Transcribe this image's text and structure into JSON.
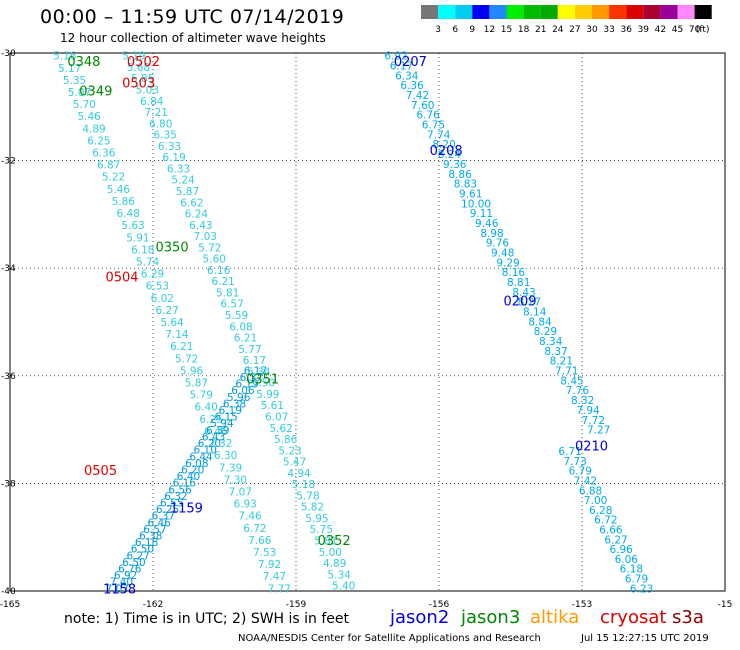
{
  "title": "00:00 – 11:59 UTC 07/14/2019",
  "subtitle": "12 hour collection of altimeter wave heights",
  "note": "note: 1) Time is in UTC; 2) SWH is in feet",
  "credit": "NOAA/NESDIS Center for Satellite Applications and Research",
  "timestamp": "Jul 15 12:27:15 UTC 2019",
  "satellites": [
    {
      "name": "jason2",
      "color": "#0000dd"
    },
    {
      "name": "jason3",
      "color": "#008800"
    },
    {
      "name": "altika",
      "color": "#ff9900"
    },
    {
      "name": "cryosat",
      "color": "#dd0000"
    },
    {
      "name": "s3a",
      "color": "#880000"
    }
  ],
  "color_scale": {
    "unit": "(ft)",
    "labels": [
      "3",
      "6",
      "9",
      "12",
      "15",
      "18",
      "21",
      "24",
      "27",
      "30",
      "33",
      "36",
      "39",
      "42",
      "45",
      "70"
    ],
    "colors": [
      "#777777",
      "#00ffff",
      "#00ccee",
      "#0000ee",
      "#2288ff",
      "#00ee00",
      "#00bb00",
      "#00aa00",
      "#ffff00",
      "#ffcc00",
      "#ff9900",
      "#ff3300",
      "#dd0000",
      "#aa0033",
      "#990099",
      "#ff88ff",
      "#000000"
    ]
  },
  "axes": {
    "x_ticks": [
      "-165",
      "-162",
      "-159",
      "-156",
      "-153",
      "-15"
    ],
    "y_ticks": [
      "-30",
      "-32",
      "-34",
      "-36",
      "-38",
      "-40"
    ]
  },
  "time_labels": [
    {
      "text": "0348",
      "color": "#008800",
      "lon": -163.45,
      "lat": -30.15
    },
    {
      "text": "0349",
      "color": "#008800",
      "lon": -163.2,
      "lat": -30.7
    },
    {
      "text": "0350",
      "color": "#008800",
      "lon": -161.6,
      "lat": -33.6
    },
    {
      "text": "0351",
      "color": "#008800",
      "lon": -159.7,
      "lat": -36.05
    },
    {
      "text": "0352",
      "color": "#008800",
      "lon": -158.2,
      "lat": -39.05
    },
    {
      "text": "0502",
      "color": "#dd0000",
      "lon": -162.2,
      "lat": -30.15
    },
    {
      "text": "0503",
      "color": "#dd0000",
      "lon": -162.3,
      "lat": -30.55
    },
    {
      "text": "0504",
      "color": "#dd0000",
      "lon": -162.65,
      "lat": -34.15
    },
    {
      "text": "0505",
      "color": "#dd0000",
      "lon": -163.1,
      "lat": -37.75
    },
    {
      "text": "0207",
      "color": "#0000dd",
      "lon": -156.6,
      "lat": -30.15
    },
    {
      "text": "0208",
      "color": "#0000dd",
      "lon": -155.85,
      "lat": -31.8
    },
    {
      "text": "0209",
      "color": "#0000dd",
      "lon": -154.3,
      "lat": -34.6
    },
    {
      "text": "0210",
      "color": "#0000dd",
      "lon": -152.8,
      "lat": -37.3
    },
    {
      "text": "1159",
      "color": "#0000dd",
      "lon": -161.3,
      "lat": -38.45
    },
    {
      "text": "1158",
      "color": "#0000dd",
      "lon": -162.7,
      "lat": -39.95
    }
  ],
  "tracks": [
    {
      "name": "jason3-left",
      "color": "#33ccdd",
      "lon0": -163.85,
      "lat0": -30.05,
      "lon1": -159.35,
      "lat1": -39.95,
      "values": [
        "5.16",
        "5.17",
        "5.35",
        "5.07",
        "5.70",
        "5.46",
        "4.89",
        "6.25",
        "6.36",
        "6.87",
        "5.22",
        "5.46",
        "5.86",
        "6.48",
        "5.63",
        "5.91",
        "6.18",
        "5.74",
        "6.29",
        "6.53",
        "6.02",
        "6.27",
        "5.64",
        "7.14",
        "6.21",
        "5.72",
        "5.96",
        "5.87",
        "5.79",
        "6.40",
        "6.25",
        "6.46",
        "7.32",
        "6.30",
        "7.39",
        "7.30",
        "7.07",
        "6.93",
        "7.46",
        "6.72",
        "7.66",
        "7.53",
        "7.92",
        "7.47",
        "7.77"
      ]
    },
    {
      "name": "jason3-right",
      "color": "#33ccdd",
      "lon0": -162.4,
      "lat0": -30.05,
      "lon1": -158.0,
      "lat1": -39.9,
      "values": [
        "5.19",
        "5.68",
        "5.85",
        "5.03",
        "6.84",
        "7.21",
        "6.80",
        "6.35",
        "6.33",
        "6.19",
        "6.33",
        "5.24",
        "5.87",
        "6.62",
        "6.24",
        "6.43",
        "7.03",
        "5.72",
        "5.60",
        "6.16",
        "6.21",
        "5.81",
        "6.57",
        "5.59",
        "6.08",
        "6.21",
        "5.77",
        "6.17",
        "5.34",
        "5.50",
        "5.99",
        "5.61",
        "6.07",
        "5.62",
        "5.86",
        "5.23",
        "5.47",
        "4.94",
        "5.18",
        "5.78",
        "5.82",
        "5.95",
        "5.75",
        "5.81",
        "5.00",
        "4.89",
        "5.34",
        "5.40"
      ]
    },
    {
      "name": "jason2-0207",
      "color": "#00aaee",
      "lon0": -156.9,
      "lat0": -30.05,
      "lon1": -152.65,
      "lat1": -37.0,
      "values": [
        "6.92",
        "6.17",
        "6.34",
        "6.36",
        "7.42",
        "7.60",
        "6.76",
        "6.75",
        "7.74",
        "8.20",
        "8.24",
        "9.36",
        "8.86",
        "8.83",
        "9.61",
        "10.00",
        "9.11",
        "9.46",
        "8.98",
        "9.76",
        "9.48",
        "9.29",
        "8.16",
        "8.81",
        "8.43",
        "8.27",
        "8.14",
        "8.84",
        "8.29",
        "8.34",
        "8.37",
        "8.21",
        "7.71",
        "8.45",
        "7.76",
        "8.32",
        "7.94",
        "7.72",
        "7.27"
      ]
    },
    {
      "name": "jason2-0210",
      "color": "#00aaee",
      "lon0": -153.25,
      "lat0": -37.4,
      "lon1": -151.75,
      "lat1": -39.95,
      "values": [
        "6.71",
        "7.73",
        "6.79",
        "7.42",
        "6.88",
        "7.00",
        "6.28",
        "6.72",
        "6.66",
        "6.27",
        "6.96",
        "6.06",
        "6.18",
        "6.79",
        "6.23"
      ]
    },
    {
      "name": "jason2-1158",
      "color": "#0099dd",
      "lon0": -162.75,
      "lat0": -39.95,
      "lon1": -159.85,
      "lat1": -35.9,
      "values": [
        "7.07",
        "7.40",
        "6.92",
        "6.76",
        "6.50",
        "6.27",
        "6.50",
        "6.18",
        "6.38",
        "6.57",
        "6.46",
        "6.37",
        "6.25",
        "6.55",
        "6.32",
        "6.56",
        "6.16",
        "6.40",
        "6.20",
        "6.08",
        "6.44",
        "6.10",
        "6.20",
        "6.43",
        "6.39",
        "5.94",
        "6.15",
        "6.19",
        "6.38",
        "5.96",
        "6.06",
        "6.19",
        "6.37",
        "6.17"
      ]
    }
  ]
}
